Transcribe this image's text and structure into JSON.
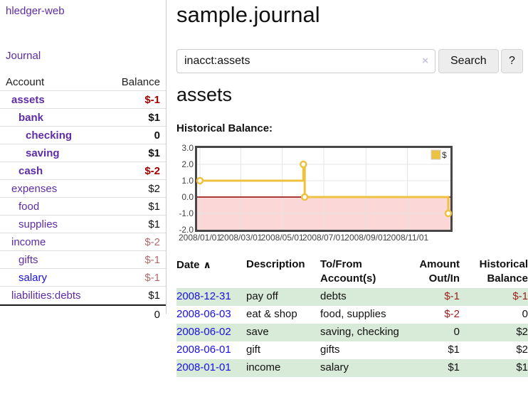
{
  "app": {
    "logo": "hledger-web",
    "nav_journal": "Journal"
  },
  "header": {
    "title": "sample.journal"
  },
  "search": {
    "query": "inacct:assets",
    "clear_icon": "×",
    "button": "Search",
    "help_button": "?"
  },
  "account_page": {
    "heading": "assets",
    "chart_label": "Historical Balance:"
  },
  "sidebar": {
    "columns": {
      "account": "Account",
      "balance": "Balance"
    },
    "accounts": [
      {
        "name": "assets",
        "depth": 1,
        "bold": true,
        "balance": "$-1",
        "balance_style": "neg-bold"
      },
      {
        "name": "bank",
        "depth": 2,
        "bold": true,
        "balance": "$1",
        "balance_style": ""
      },
      {
        "name": "checking",
        "depth": 3,
        "bold": true,
        "balance": "0",
        "balance_style": ""
      },
      {
        "name": "saving",
        "depth": 3,
        "bold": true,
        "balance": "$1",
        "balance_style": ""
      },
      {
        "name": "cash",
        "depth": 2,
        "bold": true,
        "balance": "$-2",
        "balance_style": "neg-bold"
      },
      {
        "name": "expenses",
        "depth": 1,
        "bold": false,
        "balance": "$2",
        "balance_style": ""
      },
      {
        "name": "food",
        "depth": 2,
        "bold": false,
        "balance": "$1",
        "balance_style": ""
      },
      {
        "name": "supplies",
        "depth": 2,
        "bold": false,
        "balance": "$1",
        "balance_style": ""
      },
      {
        "name": "income",
        "depth": 1,
        "bold": false,
        "balance": "$-2",
        "balance_style": "neg-muted"
      },
      {
        "name": "gifts",
        "depth": 2,
        "bold": false,
        "balance": "$-1",
        "balance_style": "neg-muted"
      },
      {
        "name": "salary",
        "depth": 2,
        "bold": false,
        "balance": "$-1",
        "balance_style": "neg-muted",
        "blue": true
      },
      {
        "name": "liabilities:debts",
        "depth": 1,
        "bold": false,
        "balance": "$1",
        "balance_style": ""
      }
    ],
    "total": "0"
  },
  "chart_data": {
    "type": "line",
    "title": "Historical Balance:",
    "series": [
      {
        "name": "$",
        "color": "#edc240",
        "steps": true,
        "points": [
          [
            "2008/01/01",
            1.0
          ],
          [
            "2008/06/01",
            2.0
          ],
          [
            "2008/06/03",
            0.0
          ],
          [
            "2008/12/31",
            -1.0
          ]
        ]
      }
    ],
    "ylim": [
      -2.0,
      3.0
    ],
    "y_ticks": [
      3.0,
      2.0,
      1.0,
      0.0,
      -1.0,
      -2.0
    ],
    "xlim": [
      "2008/01/01",
      "2008/12/31"
    ],
    "x_ticks": [
      "2008/01/01",
      "2008/03/01",
      "2008/05/01",
      "2008/07/01",
      "2008/09/01",
      "2008/11/01"
    ],
    "grid": true,
    "below_zero_shaded": true,
    "legend_position": "top-right"
  },
  "register": {
    "columns": [
      {
        "label": "Date",
        "sort_indicator": "∧"
      },
      {
        "label": "Description"
      },
      {
        "label": "To/From Account(s)"
      },
      {
        "label": "Amount Out/In"
      },
      {
        "label": "Historical Balance"
      }
    ],
    "rows": [
      {
        "date": "2008-12-31",
        "description": "pay off",
        "accounts": "debts",
        "amount": "$-1",
        "amount_negative": true,
        "balance": "$-1",
        "balance_negative": true
      },
      {
        "date": "2008-06-03",
        "description": "eat & shop",
        "accounts": "food, supplies",
        "amount": "$-2",
        "amount_negative": true,
        "balance": "0",
        "balance_negative": false
      },
      {
        "date": "2008-06-02",
        "description": "save",
        "accounts": "saving, checking",
        "amount": "0",
        "amount_negative": false,
        "balance": "$2",
        "balance_negative": false
      },
      {
        "date": "2008-06-01",
        "description": "gift",
        "accounts": "gifts",
        "amount": "$1",
        "amount_negative": false,
        "balance": "$2",
        "balance_negative": false
      },
      {
        "date": "2008-01-01",
        "description": "income",
        "accounts": "salary",
        "amount": "$1",
        "amount_negative": false,
        "balance": "$1",
        "balance_negative": false
      }
    ]
  },
  "colors": {
    "link_purple": "#5e2ca5",
    "link_blue": "#1a10e0",
    "negative_bold_red": "#a40000",
    "negative_muted_red": "#b36b6b",
    "negative_red": "#9d1f1f",
    "row_stripe_green": "#d8ead8",
    "series_yellow": "#edc240",
    "below_zero_pink": "#fbd7d7",
    "zero_line": "#8b0000",
    "chart_border": "#474747",
    "gridline": "#e4e4e4"
  }
}
